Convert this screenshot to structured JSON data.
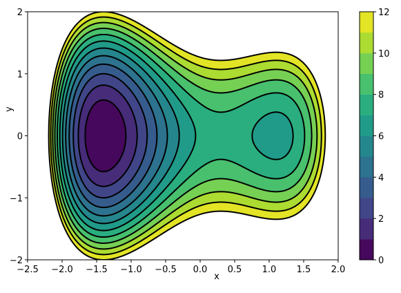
{
  "chart_data": {
    "type": "contourf",
    "xlabel": "x",
    "ylabel": "y",
    "xlim": [
      -2.5,
      2.0
    ],
    "ylim": [
      -2,
      2
    ],
    "xticks": [
      {
        "value": -2.5,
        "label": "−2.5"
      },
      {
        "value": -2.0,
        "label": "−2.0"
      },
      {
        "value": -1.5,
        "label": "−1.5"
      },
      {
        "value": -1.0,
        "label": "−1.0"
      },
      {
        "value": -0.5,
        "label": "−0.5"
      },
      {
        "value": 0.0,
        "label": "0.0"
      },
      {
        "value": 0.5,
        "label": "0.5"
      },
      {
        "value": 1.0,
        "label": "1.0"
      },
      {
        "value": 1.5,
        "label": "1.5"
      },
      {
        "value": 2.0,
        "label": "2.0"
      }
    ],
    "yticks": [
      {
        "value": -2,
        "label": "−2"
      },
      {
        "value": -1,
        "label": "−1"
      },
      0,
      1,
      2
    ],
    "levels": [
      0,
      1,
      2,
      3,
      4,
      5,
      6,
      7,
      8,
      9,
      10,
      11,
      12
    ],
    "colors": [
      "#46085c",
      "#462c79",
      "#404688",
      "#365c8d",
      "#2d728e",
      "#25878d",
      "#219b89",
      "#2aae7f",
      "#48c06e",
      "#76d053",
      "#acdb31",
      "#e2e425"
    ],
    "colorbar_lim": [
      0,
      12
    ],
    "colorbar_ticks": [
      0,
      2,
      4,
      6,
      8,
      10,
      12
    ]
  }
}
